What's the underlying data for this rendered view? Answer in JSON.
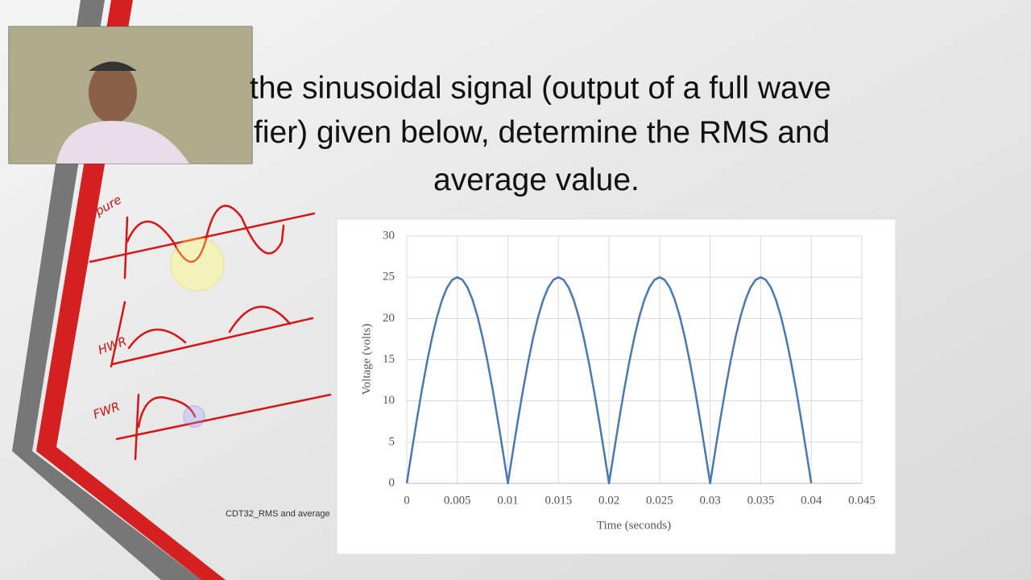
{
  "slide": {
    "lines": [
      "the sinusoidal signal (output of a full wave",
      "fier) given below, determine the RMS and",
      "average value."
    ],
    "footer": "CDT32_RMS and average"
  },
  "annotations": [
    "pure",
    "HWR",
    "FWR"
  ],
  "chart_data": {
    "type": "line",
    "xlabel": "Time (seconds)",
    "ylabel": "Voltage (volts)",
    "color": "#4a78b0",
    "grid": true,
    "xlim": [
      0,
      0.045
    ],
    "ylim": [
      0,
      30
    ],
    "xticks": [
      0,
      0.005,
      0.01,
      0.015,
      0.02,
      0.025,
      0.03,
      0.035,
      0.04,
      0.045
    ],
    "yticks": [
      0,
      5,
      10,
      15,
      20,
      25,
      30
    ],
    "x": [
      0,
      0.0005,
      0.001,
      0.0015,
      0.002,
      0.0025,
      0.003,
      0.0035,
      0.004,
      0.0045,
      0.005,
      0.0055,
      0.006,
      0.0065,
      0.007,
      0.0075,
      0.008,
      0.0085,
      0.009,
      0.0095,
      0.01,
      0.0105,
      0.011,
      0.0115,
      0.012,
      0.0125,
      0.013,
      0.0135,
      0.014,
      0.0145,
      0.015,
      0.0155,
      0.016,
      0.0165,
      0.017,
      0.0175,
      0.018,
      0.0185,
      0.019,
      0.0195,
      0.02,
      0.0205,
      0.021,
      0.0215,
      0.022,
      0.0225,
      0.023,
      0.0235,
      0.024,
      0.0245,
      0.025,
      0.0255,
      0.026,
      0.0265,
      0.027,
      0.0275,
      0.028,
      0.0285,
      0.029,
      0.0295,
      0.03,
      0.0305,
      0.031,
      0.0315,
      0.032,
      0.0325,
      0.033,
      0.0335,
      0.034,
      0.0345,
      0.035,
      0.0355,
      0.036,
      0.0365,
      0.037,
      0.0375,
      0.038,
      0.0385,
      0.039,
      0.0395,
      0.04
    ],
    "values": [
      0,
      3.91,
      7.73,
      11.35,
      14.69,
      17.68,
      20.23,
      22.28,
      23.78,
      24.69,
      25,
      24.69,
      23.78,
      22.28,
      20.23,
      17.68,
      14.69,
      11.35,
      7.73,
      3.91,
      0,
      3.91,
      7.73,
      11.35,
      14.69,
      17.68,
      20.23,
      22.28,
      23.78,
      24.69,
      25,
      24.69,
      23.78,
      22.28,
      20.23,
      17.68,
      14.69,
      11.35,
      7.73,
      3.91,
      0,
      3.91,
      7.73,
      11.35,
      14.69,
      17.68,
      20.23,
      22.28,
      23.78,
      24.69,
      25,
      24.69,
      23.78,
      22.28,
      20.23,
      17.68,
      14.69,
      11.35,
      7.73,
      3.91,
      0,
      3.91,
      7.73,
      11.35,
      14.69,
      17.68,
      20.23,
      22.28,
      23.78,
      24.69,
      25,
      24.69,
      23.78,
      22.28,
      20.23,
      17.68,
      14.69,
      11.35,
      7.73,
      3.91,
      0
    ]
  }
}
